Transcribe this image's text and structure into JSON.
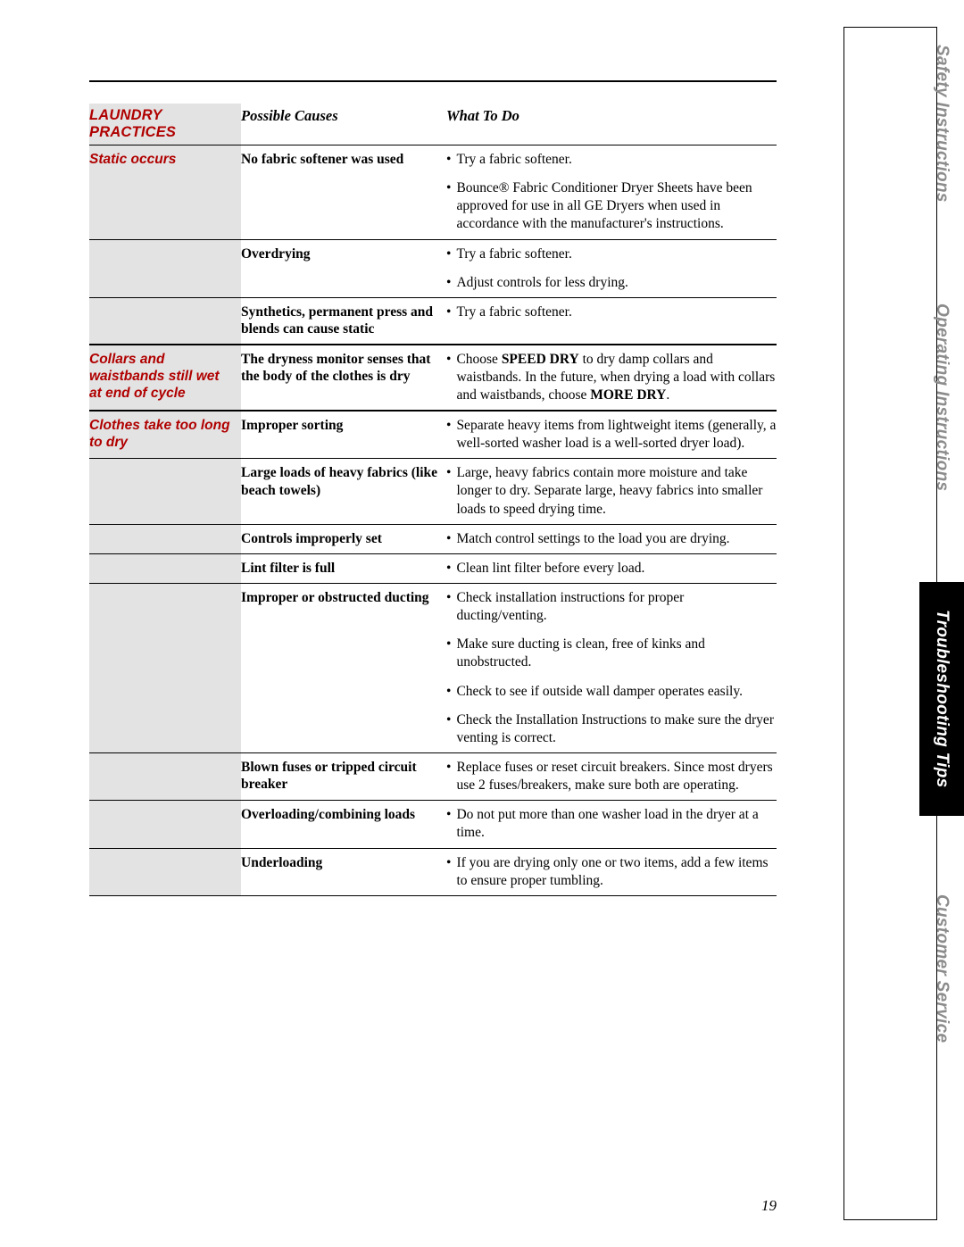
{
  "header": {
    "category_label": "LAUNDRY PRACTICES",
    "causes_label": "Possible Causes",
    "fix_label": "What To Do"
  },
  "tabs": {
    "safety": "Safety Instructions",
    "operating": "Operating Instructions",
    "troubleshooting": "Troubleshooting Tips",
    "customer": "Customer Service"
  },
  "page_number": "19",
  "groups": [
    {
      "problem": "Static occurs",
      "rows": [
        {
          "cause": "No fabric softener was used",
          "fixes": [
            [
              {
                "t": "Try a fabric softener."
              }
            ],
            [
              {
                "t": "Bounce® Fabric Conditioner Dryer Sheets have been approved for use in all GE Dryers when used in accordance with the manufacturer's instructions."
              }
            ]
          ]
        },
        {
          "cause": "Overdrying",
          "fixes": [
            [
              {
                "t": "Try a fabric softener."
              }
            ],
            [
              {
                "t": "Adjust controls for less drying."
              }
            ]
          ]
        },
        {
          "cause": "Synthetics, permanent press and blends can cause static",
          "fixes": [
            [
              {
                "t": "Try a fabric softener."
              }
            ]
          ]
        }
      ]
    },
    {
      "problem": "Collars and waistbands still wet at end of cycle",
      "rows": [
        {
          "cause": "The dryness monitor senses that the body of the clothes is dry",
          "fixes": [
            [
              {
                "t": "Choose "
              },
              {
                "t": "SPEED DRY",
                "b": true
              },
              {
                "t": " to dry damp collars and waistbands. In the future, when drying a load with collars and waistbands, choose "
              },
              {
                "t": "MORE DRY",
                "b": true
              },
              {
                "t": "."
              }
            ]
          ]
        }
      ]
    },
    {
      "problem": "Clothes take too long to dry",
      "rows": [
        {
          "cause": "Improper sorting",
          "fixes": [
            [
              {
                "t": "Separate heavy items from lightweight items (generally, a well-sorted washer load is a well-sorted dryer load)."
              }
            ]
          ]
        },
        {
          "cause": "Large loads of heavy fabrics (like beach towels)",
          "fixes": [
            [
              {
                "t": "Large, heavy fabrics contain more moisture and take longer to dry. Separate large, heavy fabrics into smaller loads to speed drying time."
              }
            ]
          ]
        },
        {
          "cause": "Controls improperly set",
          "fixes": [
            [
              {
                "t": "Match control settings to the load you are drying."
              }
            ]
          ]
        },
        {
          "cause": "Lint filter is full",
          "fixes": [
            [
              {
                "t": "Clean lint filter before every load."
              }
            ]
          ]
        },
        {
          "cause": "Improper or obstructed ducting",
          "fixes": [
            [
              {
                "t": "Check installation instructions for proper ducting/venting."
              }
            ],
            [
              {
                "t": "Make sure ducting is clean, free of kinks and unobstructed."
              }
            ],
            [
              {
                "t": "Check to see if outside wall damper operates easily."
              }
            ],
            [
              {
                "t": "Check the Installation Instructions to make sure the dryer venting is correct."
              }
            ]
          ]
        },
        {
          "cause": "Blown fuses or tripped circuit breaker",
          "fixes": [
            [
              {
                "t": "Replace fuses or reset circuit breakers. Since most dryers use 2 fuses/breakers, make sure both are operating."
              }
            ]
          ]
        },
        {
          "cause": "Overloading/combining loads",
          "fixes": [
            [
              {
                "t": "Do not put more than one washer load in the dryer at a time."
              }
            ]
          ]
        },
        {
          "cause": "Underloading",
          "fixes": [
            [
              {
                "t": "If you are drying only one or two items, add a few items to ensure proper tumbling."
              }
            ]
          ]
        }
      ]
    }
  ]
}
